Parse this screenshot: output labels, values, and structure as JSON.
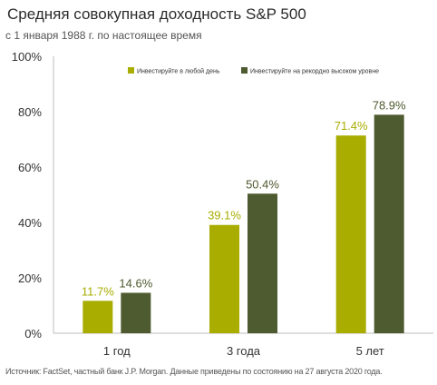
{
  "chart_data": {
    "type": "bar",
    "title": "Средняя совокупная доходность S&P 500",
    "subtitle": "с 1 января 1988 г. по настоящее время",
    "source": "Источник: FactSet, частный банк J.P. Morgan. Данные приведены по состоянию на 27 августа 2020 года.",
    "categories": [
      "1 год",
      "3 года",
      "5 лет"
    ],
    "series": [
      {
        "name": "Инвестируйте в любой день",
        "values": [
          11.7,
          39.1,
          71.4
        ],
        "labels": [
          "11.7%",
          "39.1%",
          "71.4%"
        ],
        "color": "#a8ad00"
      },
      {
        "name": "Инвестируйте на рекордно высоком уровне",
        "values": [
          14.6,
          50.4,
          78.9
        ],
        "labels": [
          "14.6%",
          "50.4%",
          "78.9%"
        ],
        "color": "#4e5a2f"
      }
    ],
    "ylim": [
      0,
      100
    ],
    "yticks": [
      0,
      20,
      40,
      60,
      80,
      100
    ],
    "ytick_labels": [
      "0%",
      "20%",
      "40%",
      "60%",
      "80%",
      "100%"
    ],
    "legend_position": "top",
    "grid": false
  }
}
